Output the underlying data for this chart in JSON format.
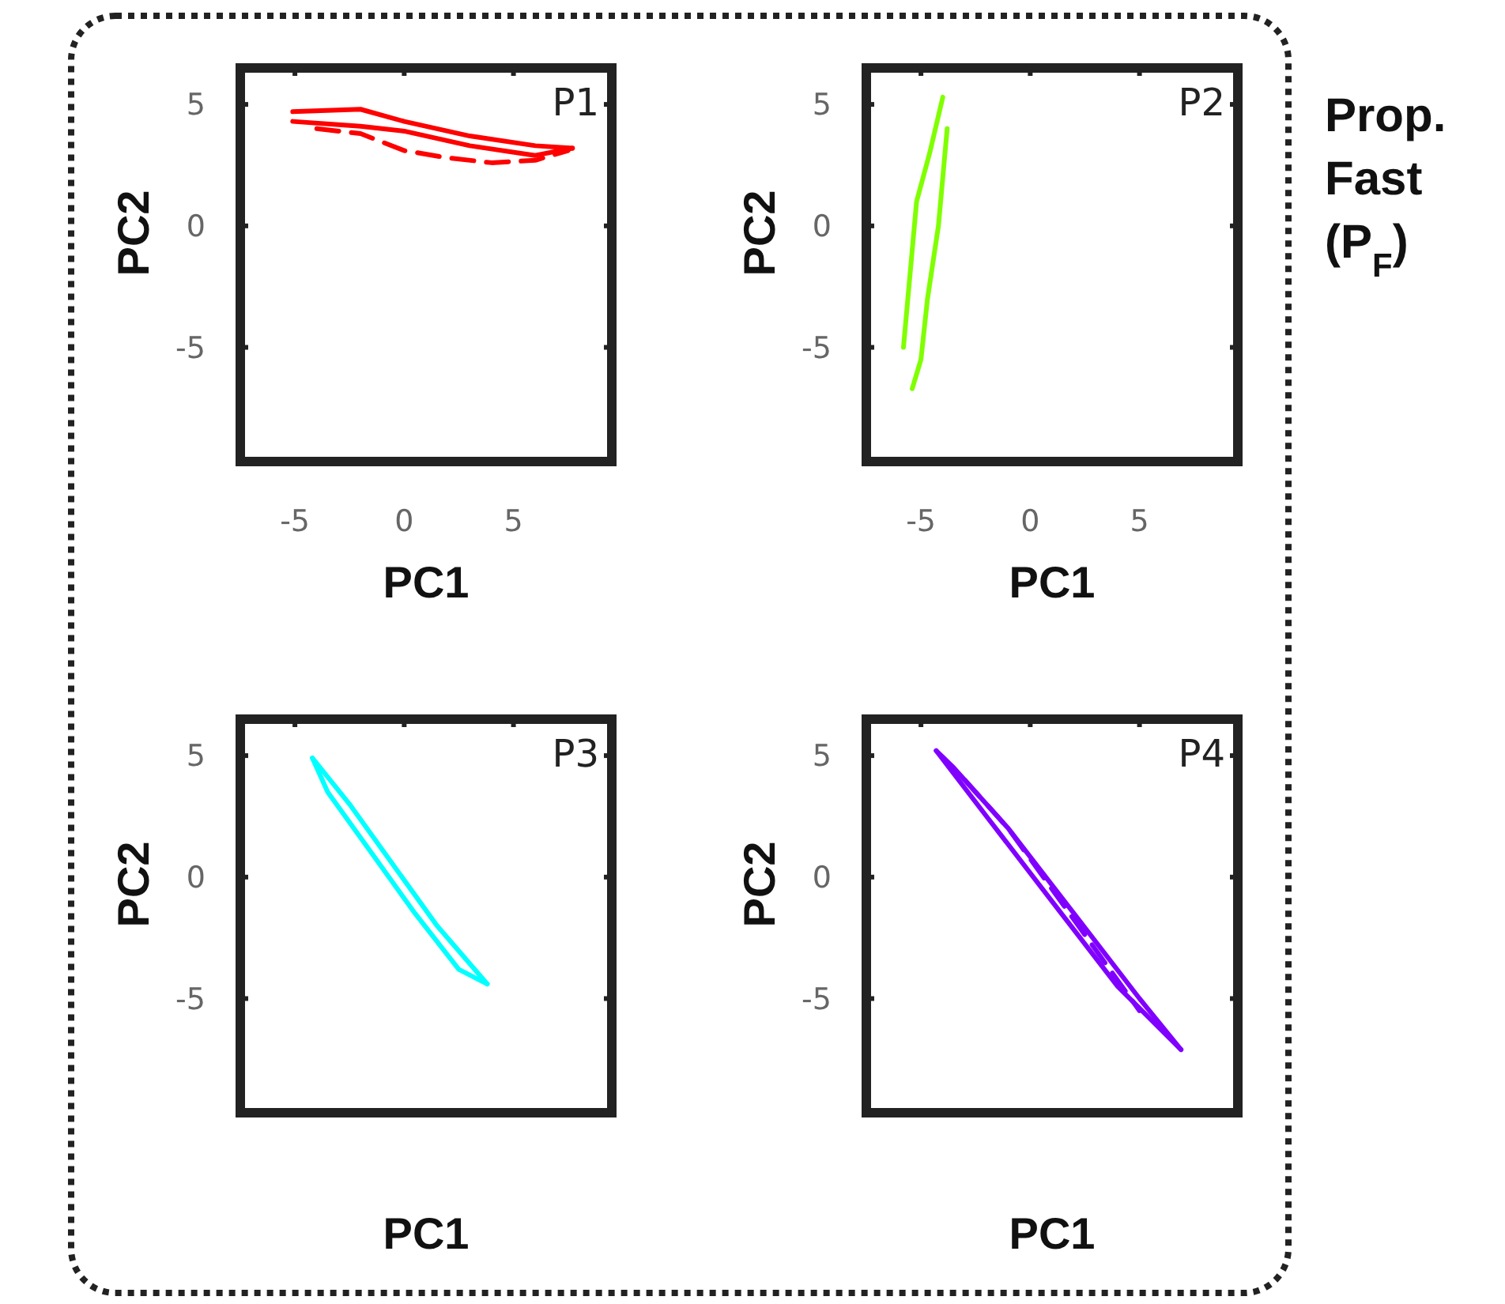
{
  "chart_data": [
    {
      "type": "line",
      "title": "P1",
      "xlabel": "PC1",
      "ylabel": "PC2",
      "xlim": [
        -7.5,
        9.5
      ],
      "ylim": [
        -9.7,
        6.5
      ],
      "xticks": [
        -5,
        0,
        5
      ],
      "yticks": [
        -5,
        0,
        5
      ],
      "marker": "none",
      "series": [
        {
          "color": "#ff0000",
          "line_style": "solid",
          "x": [
            -5.1,
            -2,
            0,
            3,
            6,
            7.7
          ],
          "values": [
            4.7,
            4.8,
            4.3,
            3.7,
            3.3,
            3.2
          ]
        },
        {
          "color": "#ff0000",
          "line_style": "solid",
          "x": [
            -5.1,
            -2,
            0,
            3,
            6,
            7.7
          ],
          "values": [
            4.3,
            4.1,
            3.9,
            3.3,
            2.9,
            3.2
          ]
        },
        {
          "color": "#ff0000",
          "line_style": "dashed",
          "x": [
            -4,
            -2,
            0,
            2,
            4,
            6,
            7.5
          ],
          "values": [
            4.0,
            3.8,
            3.1,
            2.8,
            2.6,
            2.7,
            3.1
          ]
        }
      ]
    },
    {
      "type": "line",
      "title": "P2",
      "xlabel": "PC1",
      "ylabel": "PC2",
      "xlim": [
        -7.5,
        9.5
      ],
      "ylim": [
        -9.7,
        6.5
      ],
      "xticks": [
        -5,
        0,
        5
      ],
      "yticks": [
        -5,
        0,
        5
      ],
      "marker": "none",
      "annotations": [
        "Prop. Fast (P$_{F}$)"
      ],
      "series": [
        {
          "color": "#80ff00",
          "line_style": "solid",
          "x": [
            -5.8,
            -5.5,
            -5.2,
            -4.6,
            -4
          ],
          "values": [
            -5,
            -2,
            1,
            3,
            5.3
          ]
        },
        {
          "color": "#80ff00",
          "line_style": "solid",
          "x": [
            -5.4,
            -5,
            -4.7,
            -4.2,
            -3.8
          ],
          "values": [
            -6.7,
            -5.5,
            -3,
            0,
            4
          ]
        }
      ]
    },
    {
      "type": "line",
      "title": "P3",
      "xlabel": "PC1",
      "ylabel": "PC2",
      "xlim": [
        -7.5,
        9.5
      ],
      "ylim": [
        -9.7,
        6.5
      ],
      "xticks": [
        -5,
        0,
        5
      ],
      "yticks": [
        -5,
        0,
        5
      ],
      "tick_labels": "y",
      "marker": "none",
      "series": [
        {
          "color": "#00ffff",
          "line_style": "solid",
          "x": [
            -4.2,
            -3.5,
            -1.5,
            0.5,
            2.5,
            3.8
          ],
          "values": [
            4.9,
            3.5,
            1,
            -1.5,
            -3.8,
            -4.4
          ]
        },
        {
          "color": "#00ffff",
          "line_style": "solid",
          "x": [
            -4.2,
            -2.5,
            -0.5,
            1.5,
            3.8
          ],
          "values": [
            4.9,
            3,
            0.5,
            -2,
            -4.4
          ]
        }
      ]
    },
    {
      "type": "line",
      "title": "P4",
      "xlabel": "PC1",
      "ylabel": "PC2",
      "xlim": [
        -7.5,
        9.5
      ],
      "ylim": [
        -9.7,
        6.5
      ],
      "xticks": [
        -5,
        0,
        5
      ],
      "yticks": [
        -5,
        0,
        5
      ],
      "tick_labels": "y",
      "marker": "none",
      "series": [
        {
          "color": "#8000ff",
          "line_style": "solid",
          "x": [
            -4.3,
            -3.5,
            -1,
            2,
            5,
            6.9
          ],
          "values": [
            5.2,
            4.5,
            2,
            -1.5,
            -5,
            -7.1
          ]
        },
        {
          "color": "#8000ff",
          "line_style": "solid",
          "x": [
            -4.3,
            -2,
            1,
            4,
            6.9
          ],
          "values": [
            5.2,
            2.5,
            -1,
            -4.5,
            -7.1
          ]
        },
        {
          "color": "#8000ff",
          "line_style": "dashed",
          "x": [
            -3,
            -1,
            1,
            3,
            5
          ],
          "values": [
            4,
            2,
            -0.5,
            -3,
            -5.5
          ]
        }
      ]
    }
  ]
}
